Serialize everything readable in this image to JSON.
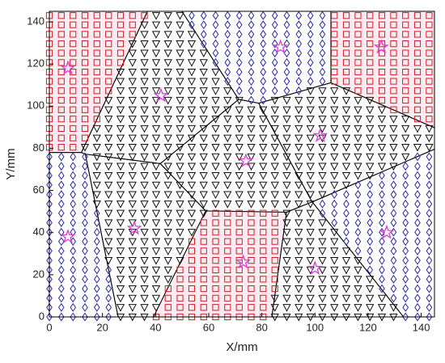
{
  "chart_data": {
    "type": "scatter",
    "xlabel": "X/mm",
    "ylabel": "Y/mm",
    "xlim": [
      0,
      145
    ],
    "ylim": [
      0,
      145
    ],
    "xticks": [
      0,
      20,
      40,
      60,
      80,
      100,
      120,
      140
    ],
    "yticks": [
      0,
      20,
      40,
      60,
      80,
      100,
      120,
      140
    ],
    "grid": {
      "x": [
        0,
        4.5,
        8.9,
        13.4,
        17.9,
        22.3,
        26.8,
        31.3,
        35.8,
        40.2,
        44.7,
        49.2,
        53.6,
        58.1,
        62.6,
        67.1,
        71.5,
        76,
        80.5,
        84.9,
        89.4,
        93.9,
        98.3,
        102.8,
        107.3,
        111.8,
        116.2,
        120.7,
        125.2,
        129.6,
        134.1,
        138.6,
        143
      ],
      "y": [
        0,
        4.5,
        8.9,
        13.4,
        17.9,
        22.3,
        26.8,
        31.3,
        35.8,
        40.2,
        44.7,
        49.2,
        53.6,
        58.1,
        62.6,
        67.1,
        71.5,
        76,
        80.5,
        84.9,
        89.4,
        93.9,
        98.3,
        102.8,
        107.3,
        111.8,
        116.2,
        120.7,
        125.2,
        129.6,
        134.1,
        138.6,
        143
      ]
    },
    "sites": {
      "x": [
        7,
        42,
        87,
        125,
        102,
        74,
        7,
        32,
        73,
        100,
        127
      ],
      "y": [
        118,
        105,
        128,
        128,
        86,
        74,
        38,
        42,
        26,
        23,
        40
      ],
      "marker": [
        "square",
        "triangle",
        "diamond",
        "square",
        "triangle",
        "triangle",
        "diamond",
        "triangle",
        "square",
        "triangle",
        "diamond"
      ]
    },
    "marker_colors": {
      "square": "#cc1f1f",
      "diamond": "#2a2aa0",
      "triangle": "#111111",
      "star": "#d63cd6"
    },
    "region_fill": {
      "square": "#fcebf2",
      "diamond": "none",
      "triangle": "none"
    }
  }
}
